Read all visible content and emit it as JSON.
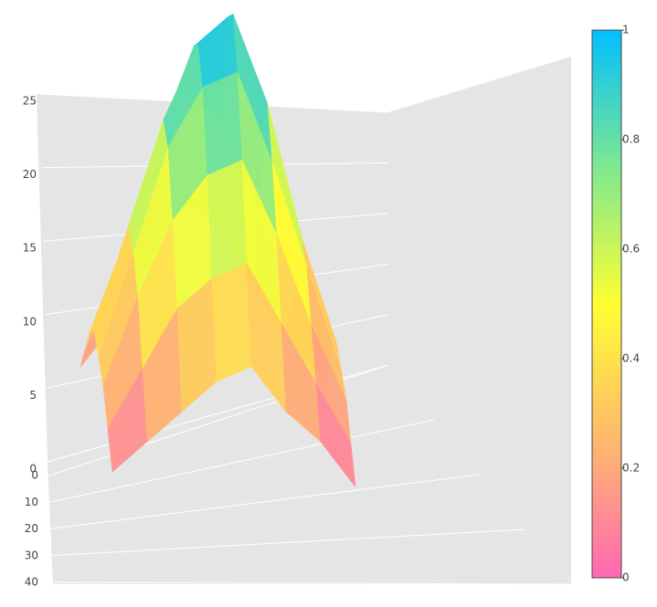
{
  "chart_data": {
    "type": "surface",
    "z": [
      [
        3,
        6,
        10,
        14,
        12,
        8,
        5,
        2
      ],
      [
        5,
        10,
        16,
        22,
        20,
        14,
        9,
        4
      ],
      [
        7,
        13,
        20,
        26,
        28,
        21,
        12,
        6
      ],
      [
        8,
        15,
        22,
        27,
        29,
        23,
        14,
        7
      ],
      [
        7,
        14,
        21,
        25,
        26,
        20,
        13,
        6
      ],
      [
        6,
        12,
        17,
        20,
        21,
        16,
        10,
        5
      ],
      [
        4,
        8,
        12,
        14,
        15,
        11,
        7,
        3
      ],
      [
        2,
        4,
        6,
        8,
        9,
        6,
        4,
        1
      ]
    ],
    "colorscale": [
      [
        0,
        "#ff69b4"
      ],
      [
        0.25,
        "#ffb86c"
      ],
      [
        0.5,
        "#ffff33"
      ],
      [
        0.75,
        "#7ee890"
      ],
      [
        1,
        "#00bfff"
      ]
    ],
    "zlim": [
      0,
      25
    ],
    "zticks": [
      0,
      5,
      10,
      15,
      20,
      25
    ],
    "ylim": [
      0,
      40
    ],
    "yticks": [
      0,
      10,
      20,
      30,
      40
    ],
    "colorbar": {
      "clim": [
        0,
        1
      ],
      "ticks": [
        0,
        0.2,
        0.4,
        0.6,
        0.8,
        1
      ]
    }
  }
}
